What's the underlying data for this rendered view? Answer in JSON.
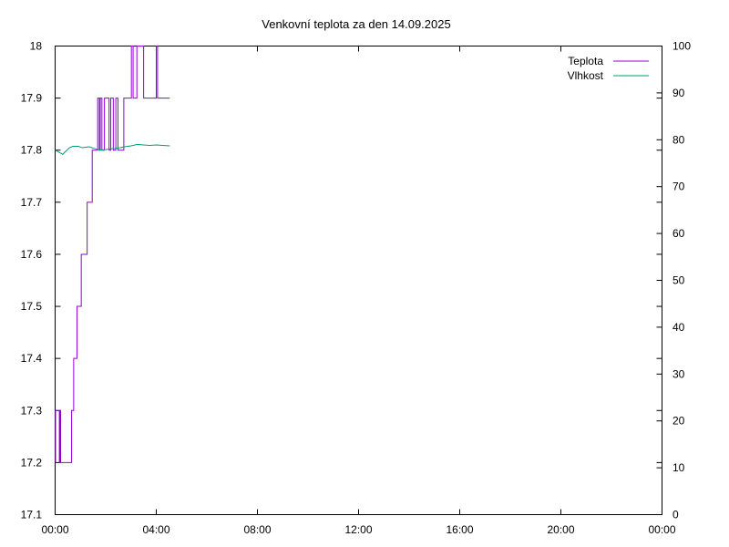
{
  "chart_data": {
    "type": "line",
    "title": "Venkovní teplota za den 14.09.2025",
    "xlabel": "",
    "ylabel": "",
    "y2label": "",
    "grid": false,
    "legend_position": "top-right",
    "x_tick_labels": [
      "00:00",
      "04:00",
      "08:00",
      "12:00",
      "16:00",
      "20:00",
      "00:00"
    ],
    "x_ticks_minutes": [
      0,
      240,
      480,
      720,
      960,
      1200,
      1440
    ],
    "xlim_minutes": [
      0,
      1440
    ],
    "y_tick_labels": [
      "17.1",
      "17.2",
      "17.3",
      "17.4",
      "17.5",
      "17.6",
      "17.7",
      "17.8",
      "17.9",
      "18"
    ],
    "y_ticks": [
      17.1,
      17.2,
      17.3,
      17.4,
      17.5,
      17.6,
      17.7,
      17.8,
      17.9,
      18.0
    ],
    "ylim": [
      17.1,
      18.0
    ],
    "y2_tick_labels": [
      "0",
      "10",
      "20",
      "30",
      "40",
      "50",
      "60",
      "70",
      "80",
      "90",
      "100"
    ],
    "y2_ticks": [
      0,
      10,
      20,
      30,
      40,
      50,
      60,
      70,
      80,
      90,
      100
    ],
    "y2lim": [
      0,
      100
    ],
    "series": [
      {
        "name": "Teplota",
        "axis": "left",
        "color": "#9400d3",
        "step": true,
        "points": [
          [
            0,
            17.2
          ],
          [
            1,
            17.3
          ],
          [
            9,
            17.3
          ],
          [
            10,
            17.2
          ],
          [
            12,
            17.3
          ],
          [
            13,
            17.2
          ],
          [
            39,
            17.3
          ],
          [
            44,
            17.4
          ],
          [
            52,
            17.5
          ],
          [
            62,
            17.6
          ],
          [
            76,
            17.7
          ],
          [
            88,
            17.8
          ],
          [
            101,
            17.9
          ],
          [
            105,
            17.8
          ],
          [
            107,
            17.9
          ],
          [
            111,
            17.8
          ],
          [
            117,
            17.9
          ],
          [
            128,
            17.8
          ],
          [
            132,
            17.9
          ],
          [
            138,
            17.8
          ],
          [
            144,
            17.9
          ],
          [
            149,
            17.8
          ],
          [
            163,
            17.9
          ],
          [
            181,
            18.0
          ],
          [
            185,
            17.9
          ],
          [
            194,
            18.0
          ],
          [
            210,
            17.9
          ],
          [
            240,
            18.0
          ],
          [
            243,
            17.9
          ],
          [
            272,
            17.9
          ]
        ]
      },
      {
        "name": "Vlhkost",
        "axis": "right",
        "color": "#009e73",
        "step": false,
        "points": [
          [
            0,
            77.8
          ],
          [
            10,
            77.3
          ],
          [
            18,
            76.9
          ],
          [
            26,
            77.6
          ],
          [
            34,
            78.3
          ],
          [
            42,
            78.6
          ],
          [
            55,
            78.6
          ],
          [
            65,
            78.3
          ],
          [
            80,
            78.5
          ],
          [
            95,
            78.1
          ],
          [
            105,
            77.8
          ],
          [
            120,
            77.9
          ],
          [
            135,
            78.1
          ],
          [
            150,
            78.2
          ],
          [
            165,
            78.5
          ],
          [
            180,
            78.7
          ],
          [
            195,
            79.0
          ],
          [
            210,
            78.9
          ],
          [
            225,
            78.8
          ],
          [
            240,
            78.9
          ],
          [
            255,
            78.8
          ],
          [
            272,
            78.7
          ]
        ]
      }
    ]
  }
}
